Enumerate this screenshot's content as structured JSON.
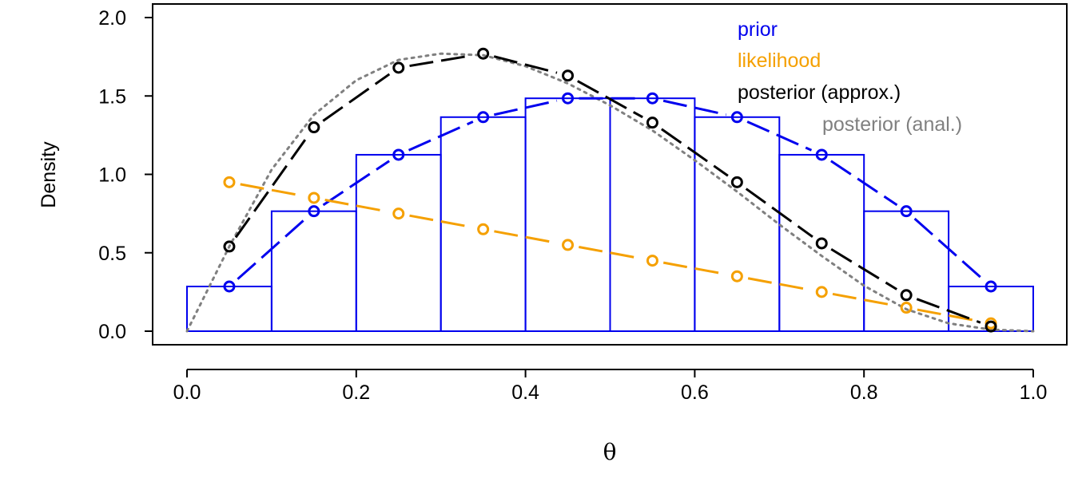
{
  "chart_data": {
    "type": "line",
    "xlabel": "θ",
    "ylabel": "Density",
    "xlim": [
      0.0,
      1.0
    ],
    "ylim": [
      0.0,
      2.0
    ],
    "x_ticks": [
      "0.0",
      "0.2",
      "0.4",
      "0.6",
      "0.8",
      "1.0"
    ],
    "y_ticks": [
      "0.0",
      "0.5",
      "1.0",
      "1.5",
      "2.0"
    ],
    "legend_position": "top-right",
    "histogram": {
      "color": "#0000ee",
      "bins": [
        0.0,
        0.1,
        0.2,
        0.3,
        0.4,
        0.5,
        0.6,
        0.7,
        0.8,
        0.9,
        1.0
      ],
      "heights": [
        0.285,
        0.765,
        1.125,
        1.365,
        1.485,
        1.485,
        1.365,
        1.125,
        0.765,
        0.285
      ]
    },
    "series": [
      {
        "name": "prior",
        "color": "#0000ee",
        "x": [
          0.05,
          0.15,
          0.25,
          0.35,
          0.45,
          0.55,
          0.65,
          0.75,
          0.85,
          0.95
        ],
        "values": [
          0.285,
          0.765,
          1.125,
          1.365,
          1.485,
          1.485,
          1.365,
          1.125,
          0.765,
          0.285
        ]
      },
      {
        "name": "likelihood",
        "color": "#f5a000",
        "x": [
          0.05,
          0.15,
          0.25,
          0.35,
          0.45,
          0.55,
          0.65,
          0.75,
          0.85,
          0.95
        ],
        "values": [
          0.95,
          0.85,
          0.75,
          0.65,
          0.55,
          0.45,
          0.35,
          0.25,
          0.15,
          0.05
        ]
      },
      {
        "name": "posterior (approx.)",
        "color": "#000000",
        "x": [
          0.05,
          0.15,
          0.25,
          0.35,
          0.45,
          0.55,
          0.65,
          0.75,
          0.85,
          0.95
        ],
        "values": [
          0.54,
          1.3,
          1.68,
          1.77,
          1.63,
          1.33,
          0.95,
          0.56,
          0.23,
          0.03
        ]
      },
      {
        "name": "posterior (anal.)",
        "color": "#808080",
        "x": [
          0.0,
          0.05,
          0.1,
          0.15,
          0.2,
          0.25,
          0.3,
          0.35,
          0.4,
          0.45,
          0.5,
          0.55,
          0.6,
          0.65,
          0.7,
          0.75,
          0.8,
          0.85,
          0.9,
          0.95,
          1.0
        ],
        "values": [
          0.0,
          0.54,
          1.03,
          1.38,
          1.6,
          1.73,
          1.77,
          1.76,
          1.69,
          1.58,
          1.44,
          1.28,
          1.09,
          0.89,
          0.68,
          0.48,
          0.29,
          0.14,
          0.05,
          0.01,
          0.0
        ]
      }
    ],
    "legend": [
      {
        "label": "prior",
        "color": "#0000ee"
      },
      {
        "label": "likelihood",
        "color": "#f5a000"
      },
      {
        "label": "posterior (approx.)",
        "color": "#000000"
      },
      {
        "label": "posterior (anal.)",
        "color": "#808080"
      }
    ]
  }
}
